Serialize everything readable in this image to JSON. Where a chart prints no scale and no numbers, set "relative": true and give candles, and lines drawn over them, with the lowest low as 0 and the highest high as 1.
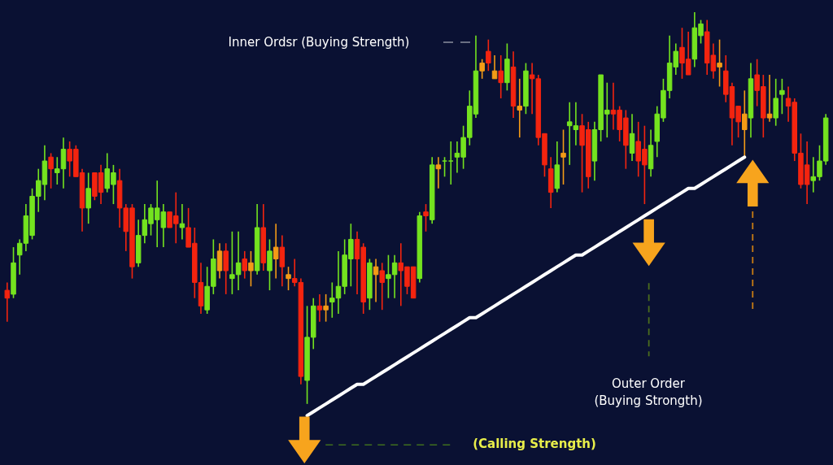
{
  "chart_data": {
    "type": "candlestick",
    "relative": true,
    "tick_labels": false,
    "categories": [
      null,
      null,
      null,
      null,
      null,
      null,
      null,
      null,
      null,
      null,
      null,
      null,
      null,
      null,
      null,
      null,
      null,
      null,
      null,
      null,
      null,
      null,
      null,
      null,
      null,
      null,
      null,
      null,
      null,
      null,
      null,
      null,
      null,
      null,
      null,
      null,
      null,
      null,
      null,
      null,
      null,
      null,
      null,
      null,
      null,
      null,
      null,
      null,
      null,
      null,
      null,
      null,
      null,
      null,
      null,
      null,
      null,
      null,
      null,
      null,
      null,
      null,
      null,
      null,
      null,
      null,
      null,
      null,
      null,
      null,
      null,
      null,
      null,
      null,
      null,
      null,
      null,
      null,
      null,
      null,
      null,
      null,
      null,
      null,
      null,
      null,
      null,
      null,
      null,
      null,
      null,
      null,
      null,
      null,
      null,
      null,
      null,
      null,
      null,
      null,
      null,
      null,
      null,
      null,
      null,
      null,
      null,
      null,
      null,
      null,
      null,
      null,
      null,
      null,
      null,
      null,
      null,
      null,
      null,
      null,
      null,
      null,
      null,
      null,
      null,
      null,
      null,
      null,
      null,
      null,
      null,
      null
    ],
    "ohlc": [
      [
        0.29,
        0.31,
        0.21,
        0.27
      ],
      [
        0.28,
        0.4,
        0.27,
        0.36
      ],
      [
        0.38,
        0.42,
        0.33,
        0.41
      ],
      [
        0.41,
        0.51,
        0.39,
        0.48
      ],
      [
        0.43,
        0.55,
        0.42,
        0.53
      ],
      [
        0.53,
        0.6,
        0.49,
        0.57
      ],
      [
        0.56,
        0.66,
        0.52,
        0.62
      ],
      [
        0.63,
        0.64,
        0.55,
        0.6
      ],
      [
        0.59,
        0.63,
        0.56,
        0.6
      ],
      [
        0.6,
        0.68,
        0.55,
        0.65
      ],
      [
        0.65,
        0.67,
        0.58,
        0.62
      ],
      [
        0.65,
        0.66,
        0.58,
        0.58
      ],
      [
        0.59,
        0.6,
        0.44,
        0.5
      ],
      [
        0.5,
        0.59,
        0.46,
        0.55
      ],
      [
        0.59,
        0.59,
        0.52,
        0.53
      ],
      [
        0.59,
        0.61,
        0.51,
        0.54
      ],
      [
        0.55,
        0.64,
        0.54,
        0.6
      ],
      [
        0.56,
        0.61,
        0.51,
        0.59
      ],
      [
        0.57,
        0.6,
        0.45,
        0.5
      ],
      [
        0.5,
        0.51,
        0.39,
        0.44
      ],
      [
        0.5,
        0.51,
        0.32,
        0.35
      ],
      [
        0.36,
        0.47,
        0.35,
        0.43
      ],
      [
        0.43,
        0.51,
        0.41,
        0.47
      ],
      [
        0.46,
        0.51,
        0.43,
        0.5
      ],
      [
        0.47,
        0.57,
        0.4,
        0.5
      ],
      [
        0.45,
        0.51,
        0.4,
        0.49
      ],
      [
        0.49,
        0.49,
        0.45,
        0.45
      ],
      [
        0.48,
        0.54,
        0.41,
        0.46
      ],
      [
        0.45,
        0.51,
        0.42,
        0.46
      ],
      [
        0.45,
        0.5,
        0.4,
        0.4
      ],
      [
        0.41,
        0.45,
        0.27,
        0.31
      ],
      [
        0.31,
        0.36,
        0.23,
        0.25
      ],
      [
        0.24,
        0.35,
        0.23,
        0.3
      ],
      [
        0.3,
        0.42,
        0.28,
        0.37
      ],
      [
        0.39,
        0.41,
        0.32,
        0.34
      ],
      [
        0.39,
        0.41,
        0.28,
        0.34
      ],
      [
        0.32,
        0.44,
        0.28,
        0.33
      ],
      [
        0.33,
        0.44,
        0.29,
        0.36
      ],
      [
        0.37,
        0.39,
        0.32,
        0.34
      ],
      [
        0.36,
        0.39,
        0.3,
        0.34
      ],
      [
        0.34,
        0.51,
        0.33,
        0.45
      ],
      [
        0.45,
        0.51,
        0.34,
        0.36
      ],
      [
        0.34,
        0.42,
        0.29,
        0.39
      ],
      [
        0.37,
        0.46,
        0.32,
        0.4
      ],
      [
        0.4,
        0.43,
        0.3,
        0.35
      ],
      [
        0.33,
        0.35,
        0.29,
        0.32
      ],
      [
        0.32,
        0.37,
        0.3,
        0.31
      ],
      [
        0.31,
        0.32,
        0.05,
        0.07
      ],
      [
        0.06,
        0.25,
        0,
        0.17
      ],
      [
        0.17,
        0.27,
        0.14,
        0.25
      ],
      [
        0.25,
        0.28,
        0.21,
        0.24
      ],
      [
        0.24,
        0.28,
        0.21,
        0.25
      ],
      [
        0.26,
        0.31,
        0.22,
        0.27
      ],
      [
        0.27,
        0.39,
        0.23,
        0.3
      ],
      [
        0.3,
        0.42,
        0.28,
        0.38
      ],
      [
        0.37,
        0.46,
        0.3,
        0.42
      ],
      [
        0.42,
        0.44,
        0.28,
        0.37
      ],
      [
        0.4,
        0.41,
        0.23,
        0.26
      ],
      [
        0.27,
        0.37,
        0.24,
        0.36
      ],
      [
        0.35,
        0.37,
        0.26,
        0.33
      ],
      [
        0.34,
        0.36,
        0.24,
        0.31
      ],
      [
        0.32,
        0.38,
        0.27,
        0.33
      ],
      [
        0.33,
        0.38,
        0.27,
        0.36
      ],
      [
        0.36,
        0.41,
        0.25,
        0.34
      ],
      [
        0.35,
        0.35,
        0.28,
        0.3
      ],
      [
        0.35,
        0.35,
        0.27,
        0.27
      ],
      [
        0.32,
        0.49,
        0.31,
        0.48
      ],
      [
        0.49,
        0.51,
        0.44,
        0.48
      ],
      [
        0.47,
        0.63,
        0.46,
        0.61
      ],
      [
        0.61,
        0.63,
        0.55,
        0.6
      ],
      [
        0.62,
        0.63,
        0.58,
        0.62
      ],
      [
        0.62,
        0.67,
        0.56,
        0.62
      ],
      [
        0.63,
        0.67,
        0.59,
        0.64
      ],
      [
        0.63,
        0.71,
        0.6,
        0.68
      ],
      [
        0.68,
        0.8,
        0.66,
        0.76
      ],
      [
        0.74,
        0.94,
        0.73,
        0.85
      ],
      [
        0.87,
        0.88,
        0.83,
        0.85
      ],
      [
        0.9,
        0.93,
        0.85,
        0.87
      ],
      [
        0.85,
        0.89,
        0.83,
        0.83
      ],
      [
        0.85,
        0.89,
        0.78,
        0.82
      ],
      [
        0.82,
        0.92,
        0.8,
        0.88
      ],
      [
        0.86,
        0.9,
        0.73,
        0.76
      ],
      [
        0.76,
        0.83,
        0.68,
        0.75
      ],
      [
        0.76,
        0.87,
        0.74,
        0.85
      ],
      [
        0.84,
        0.87,
        0.74,
        0.83
      ],
      [
        0.83,
        0.84,
        0.66,
        0.68
      ],
      [
        0.69,
        0.69,
        0.58,
        0.61
      ],
      [
        0.6,
        0.63,
        0.5,
        0.54
      ],
      [
        0.55,
        0.67,
        0.54,
        0.61
      ],
      [
        0.64,
        0.7,
        0.56,
        0.63
      ],
      [
        0.71,
        0.77,
        0.61,
        0.72
      ],
      [
        0.7,
        0.77,
        0.66,
        0.71
      ],
      [
        0.71,
        0.74,
        0.54,
        0.66
      ],
      [
        0.7,
        0.72,
        0.55,
        0.58
      ],
      [
        0.62,
        0.72,
        0.57,
        0.7
      ],
      [
        0.7,
        0.84,
        0.67,
        0.84
      ],
      [
        0.74,
        0.82,
        0.68,
        0.75
      ],
      [
        0.75,
        0.82,
        0.7,
        0.74
      ],
      [
        0.75,
        0.76,
        0.67,
        0.7
      ],
      [
        0.73,
        0.75,
        0.6,
        0.66
      ],
      [
        0.64,
        0.74,
        0.62,
        0.69
      ],
      [
        0.67,
        0.72,
        0.58,
        0.62
      ],
      [
        0.65,
        0.71,
        0.51,
        0.61
      ],
      [
        0.6,
        0.7,
        0.58,
        0.66
      ],
      [
        0.67,
        0.76,
        0.63,
        0.74
      ],
      [
        0.73,
        0.83,
        0.72,
        0.8
      ],
      [
        0.8,
        0.94,
        0.78,
        0.87
      ],
      [
        0.86,
        0.92,
        0.84,
        0.9
      ],
      [
        0.91,
        0.96,
        0.83,
        0.87
      ],
      [
        0.88,
        0.95,
        0.84,
        0.84
      ],
      [
        0.88,
        1,
        0.86,
        0.96
      ],
      [
        0.94,
        0.98,
        0.92,
        0.97
      ],
      [
        0.95,
        0.98,
        0.84,
        0.87
      ],
      [
        0.89,
        0.92,
        0.83,
        0.85
      ],
      [
        0.87,
        0.93,
        0.81,
        0.86
      ],
      [
        0.85,
        0.89,
        0.77,
        0.79
      ],
      [
        0.81,
        0.82,
        0.66,
        0.73
      ],
      [
        0.76,
        0.76,
        0.68,
        0.72
      ],
      [
        0.74,
        0.8,
        0.63,
        0.7
      ],
      [
        0.73,
        0.87,
        0.68,
        0.83
      ],
      [
        0.84,
        0.88,
        0.76,
        0.8
      ],
      [
        0.81,
        0.84,
        0.68,
        0.73
      ],
      [
        0.74,
        0.84,
        0.72,
        0.73
      ],
      [
        0.73,
        0.83,
        0.71,
        0.78
      ],
      [
        0.79,
        0.83,
        0.74,
        0.8
      ],
      [
        0.78,
        0.81,
        0.72,
        0.76
      ],
      [
        0.77,
        0.78,
        0.62,
        0.64
      ],
      [
        0.64,
        0.69,
        0.55,
        0.56
      ],
      [
        0.61,
        0.67,
        0.51,
        0.56
      ],
      [
        0.57,
        0.63,
        0.54,
        0.58
      ],
      [
        0.58,
        0.66,
        0.57,
        0.62
      ],
      [
        0.62,
        0.74,
        0.61,
        0.73
      ]
    ],
    "colors": [
      "#f3240f",
      "#74e31f",
      "#74e31f",
      "#74e31f",
      "#74e31f",
      "#74e31f",
      "#74e31f",
      "#f3240f",
      "#74e31f",
      "#74e31f",
      "#f3240f",
      "#f3240f",
      "#f3240f",
      "#74e31f",
      "#f3240f",
      "#f3240f",
      "#74e31f",
      "#74e31f",
      "#f3240f",
      "#f3240f",
      "#f3240f",
      "#74e31f",
      "#74e31f",
      "#74e31f",
      "#74e31f",
      "#74e31f",
      "#f3240f",
      "#f3240f",
      "#74e31f",
      "#f3240f",
      "#f3240f",
      "#f3240f",
      "#74e31f",
      "#74e31f",
      "#f49b16",
      "#f3240f",
      "#74e31f",
      "#74e31f",
      "#f3240f",
      "#f49b16",
      "#74e31f",
      "#f3240f",
      "#74e31f",
      "#f49b16",
      "#f3240f",
      "#f49b16",
      "#f3240f",
      "#f3240f",
      "#74e31f",
      "#74e31f",
      "#f3240f",
      "#f49b16",
      "#74e31f",
      "#74e31f",
      "#74e31f",
      "#74e31f",
      "#f3240f",
      "#f3240f",
      "#74e31f",
      "#f49b16",
      "#f3240f",
      "#74e31f",
      "#74e31f",
      "#f3240f",
      "#f3240f",
      "#f3240f",
      "#74e31f",
      "#f3240f",
      "#74e31f",
      "#f49b16",
      "#74e31f",
      "#74e31f",
      "#74e31f",
      "#74e31f",
      "#74e31f",
      "#74e31f",
      "#f49b16",
      "#f3240f",
      "#f49b16",
      "#f3240f",
      "#74e31f",
      "#f3240f",
      "#f49b16",
      "#74e31f",
      "#f3240f",
      "#f3240f",
      "#f3240f",
      "#f3240f",
      "#74e31f",
      "#f49b16",
      "#74e31f",
      "#74e31f",
      "#f3240f",
      "#f3240f",
      "#74e31f",
      "#74e31f",
      "#74e31f",
      "#f3240f",
      "#f3240f",
      "#f3240f",
      "#74e31f",
      "#f3240f",
      "#f3240f",
      "#74e31f",
      "#74e31f",
      "#74e31f",
      "#74e31f",
      "#74e31f",
      "#f3240f",
      "#f3240f",
      "#74e31f",
      "#74e31f",
      "#f3240f",
      "#f3240f",
      "#f49b16",
      "#f3240f",
      "#f3240f",
      "#f3240f",
      "#f49b16",
      "#74e31f",
      "#f3240f",
      "#f3240f",
      "#f49b16",
      "#74e31f",
      "#74e31f",
      "#f3240f",
      "#f3240f",
      "#f3240f",
      "#f3240f",
      "#74e31f",
      "#74e31f",
      "#74e31f"
    ],
    "series": [
      {
        "type": "line",
        "color": "#ffffff",
        "values": [
          null,
          null,
          null,
          null,
          null,
          null,
          null,
          null,
          null,
          null,
          null,
          null,
          null,
          null,
          null,
          null,
          null,
          null,
          null,
          null,
          null,
          null,
          null,
          null,
          null,
          null,
          null,
          null,
          null,
          null,
          null,
          null,
          null,
          null,
          null,
          null,
          null,
          null,
          null,
          null,
          null,
          null,
          null,
          null,
          null,
          null,
          null,
          null,
          -0.03,
          -0.02,
          -0.01,
          0,
          0.01,
          0.02,
          0.03,
          0.04,
          0.05,
          0.05,
          0.06,
          0.07,
          0.08,
          0.09,
          0.1,
          0.11,
          0.12,
          0.13,
          0.14,
          0.15,
          0.16,
          0.17,
          0.18,
          0.19,
          0.2,
          0.21,
          0.22,
          0.22,
          0.23,
          0.24,
          0.25,
          0.26,
          0.27,
          0.28,
          0.29,
          0.3,
          0.31,
          0.32,
          0.33,
          0.34,
          0.35,
          0.36,
          0.37,
          0.38,
          0.38,
          0.39,
          0.4,
          0.41,
          0.42,
          0.43,
          0.44,
          0.45,
          0.46,
          0.47,
          0.48,
          0.49,
          0.5,
          0.51,
          0.52,
          0.53,
          0.54,
          0.55,
          0.55,
          0.56,
          0.57,
          0.58,
          0.59,
          0.6,
          0.61,
          0.62,
          0.63,
          null,
          null,
          null,
          null,
          null,
          null,
          null,
          null,
          null,
          null,
          null,
          null,
          null
        ]
      }
    ],
    "annotations": [
      "Inner Ordsr (Buying Strength)",
      "Outer Order",
      "(Buying Strongth)",
      "(Calling Strength)"
    ]
  }
}
